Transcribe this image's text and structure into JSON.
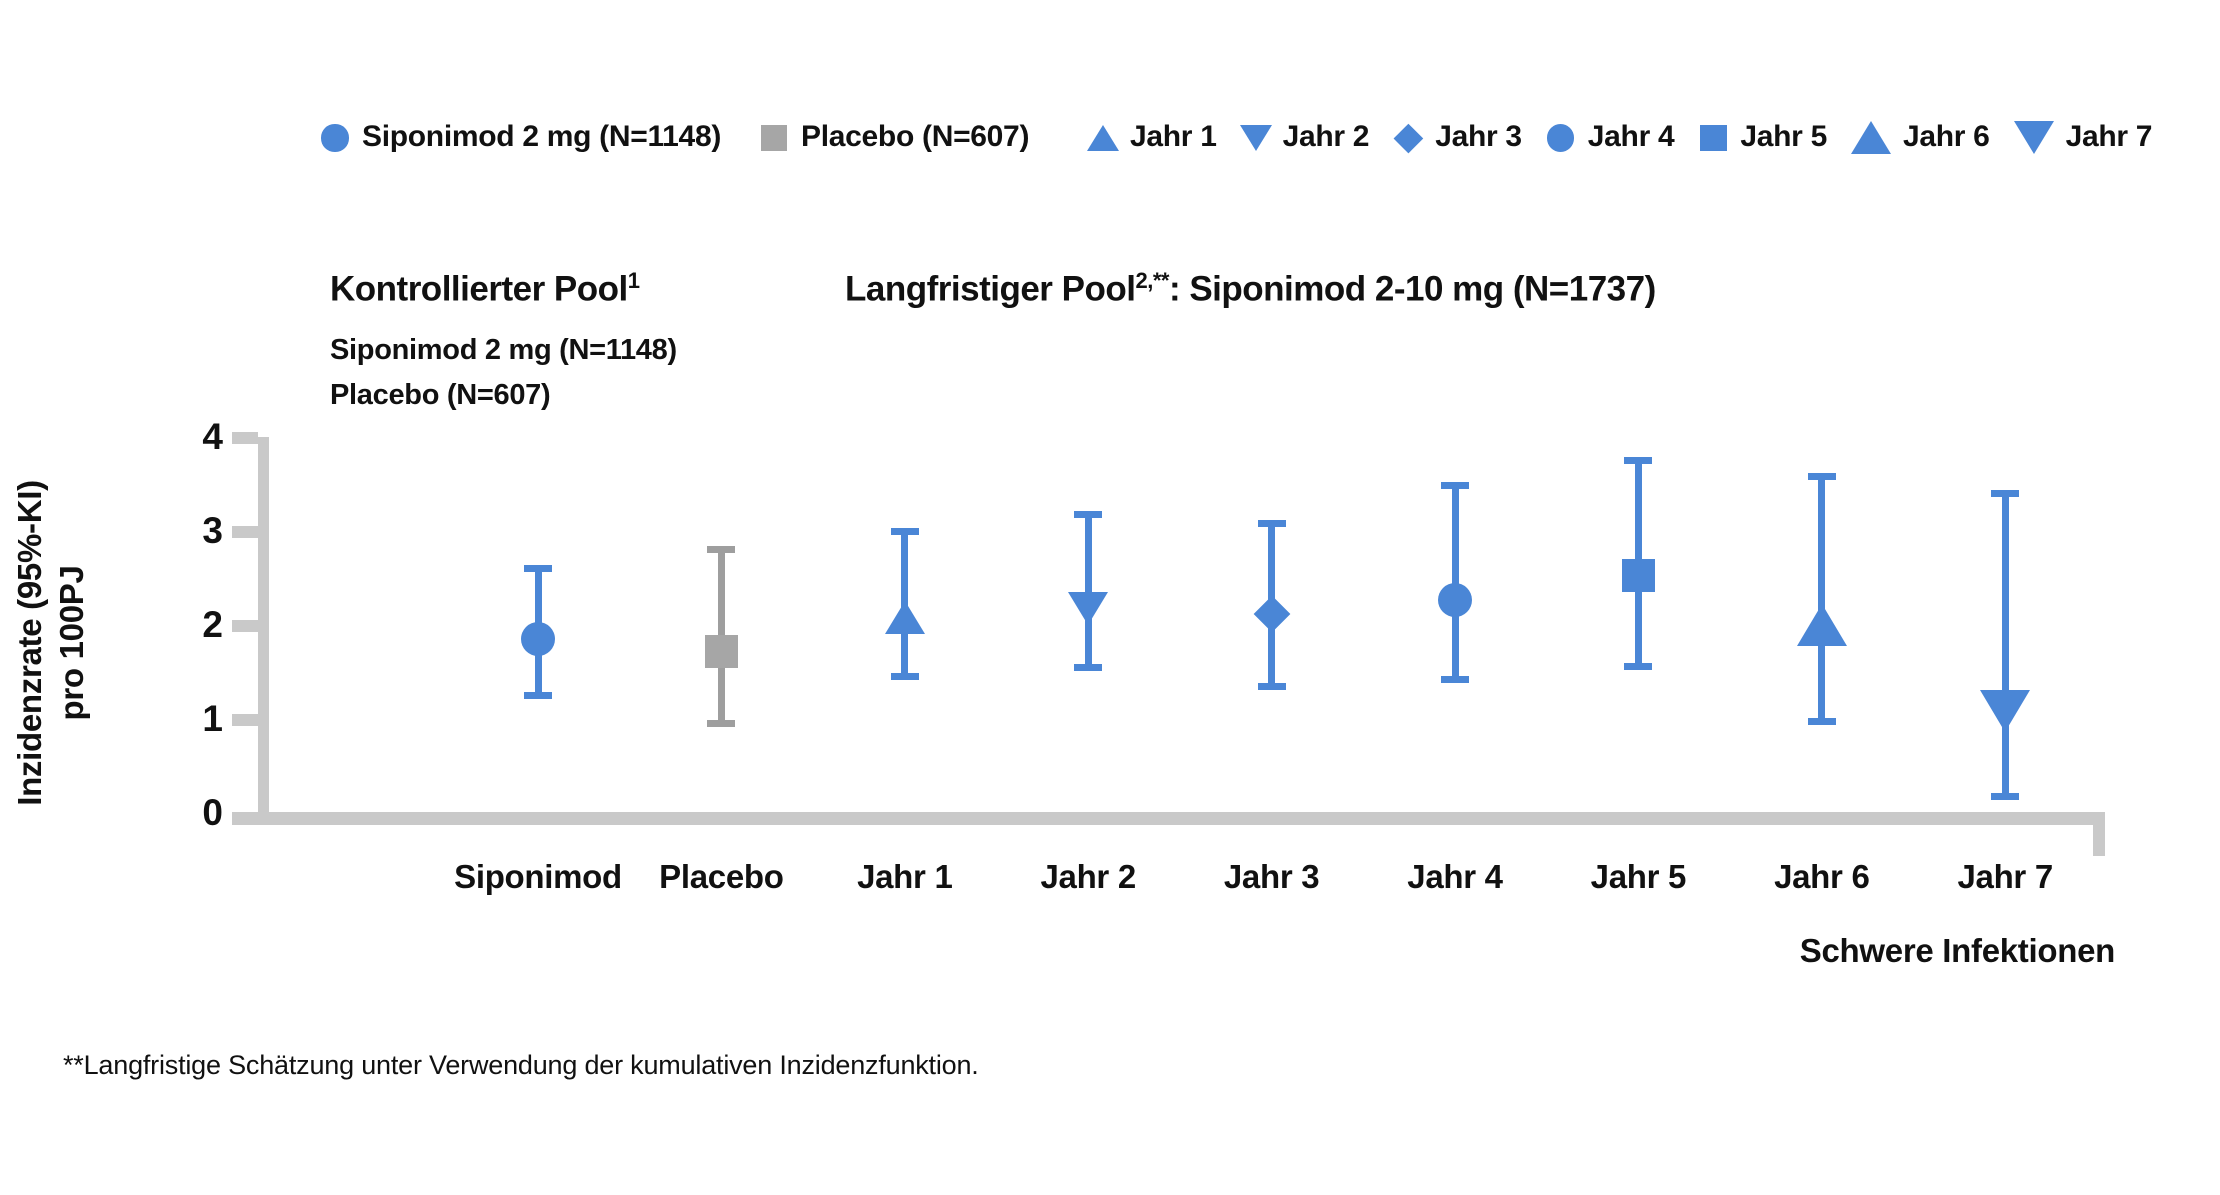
{
  "legend": {
    "controlled": [
      {
        "label": "Siponimod 2 mg (N=1148)",
        "marker": "circle",
        "color_key": "blue"
      },
      {
        "label": "Placebo (N=607)",
        "marker": "square",
        "color_key": "gray_marker"
      }
    ],
    "longterm": [
      {
        "label": "Jahr 1",
        "marker": "triangle-up",
        "color_key": "blue"
      },
      {
        "label": "Jahr 2",
        "marker": "triangle-down",
        "color_key": "blue"
      },
      {
        "label": "Jahr 3",
        "marker": "diamond",
        "color_key": "blue"
      },
      {
        "label": "Jahr 4",
        "marker": "circle",
        "color_key": "blue"
      },
      {
        "label": "Jahr 5",
        "marker": "square",
        "color_key": "blue"
      },
      {
        "label": "Jahr 6",
        "marker": "triangle-up-large",
        "color_key": "blue"
      },
      {
        "label": "Jahr 7",
        "marker": "triangle-down-large",
        "color_key": "blue"
      }
    ]
  },
  "header": {
    "left_title": {
      "text": "Kontrollierter Pool",
      "sup": "1"
    },
    "left_subtitle_lines": [
      "Siponimod 2 mg (N=1148)",
      "Placebo (N=607)"
    ],
    "right_title": {
      "text": "Langfristiger Pool",
      "sup": "2,**",
      "rest": ": Siponimod 2-10 mg (N=1737)"
    }
  },
  "chart_data": {
    "type": "scatter",
    "subtype": "point-estimates-with-95ci-errorbars",
    "ylabel_lines": [
      "Inzidenzrate (95%-KI)",
      "pro 100PJ"
    ],
    "yticks": [
      0,
      1,
      2,
      3,
      4
    ],
    "ylim": [
      0,
      4
    ],
    "grid": false,
    "x_caption": "Schwere Infektionen",
    "points": [
      {
        "label": "Siponimod",
        "pool": "Kontrollierter Pool",
        "marker": "circle",
        "color_key": "blue",
        "value": 1.85,
        "ci_low": 1.25,
        "ci_high": 2.6
      },
      {
        "label": "Placebo",
        "pool": "Kontrollierter Pool",
        "marker": "square",
        "color_key": "gray",
        "value": 1.72,
        "ci_low": 0.95,
        "ci_high": 2.8
      },
      {
        "label": "Jahr 1",
        "pool": "Langfristiger Pool",
        "marker": "triangle-up",
        "color_key": "blue",
        "value": 2.08,
        "ci_low": 1.45,
        "ci_high": 3.0
      },
      {
        "label": "Jahr 2",
        "pool": "Langfristiger Pool",
        "marker": "triangle-down",
        "color_key": "blue",
        "value": 2.18,
        "ci_low": 1.55,
        "ci_high": 3.18
      },
      {
        "label": "Jahr 3",
        "pool": "Langfristiger Pool",
        "marker": "diamond",
        "color_key": "blue",
        "value": 2.12,
        "ci_low": 1.35,
        "ci_high": 3.08
      },
      {
        "label": "Jahr 4",
        "pool": "Langfristiger Pool",
        "marker": "circle",
        "color_key": "blue",
        "value": 2.27,
        "ci_low": 1.42,
        "ci_high": 3.48
      },
      {
        "label": "Jahr 5",
        "pool": "Langfristiger Pool",
        "marker": "square",
        "color_key": "blue",
        "value": 2.53,
        "ci_low": 1.56,
        "ci_high": 3.75
      },
      {
        "label": "Jahr 6",
        "pool": "Langfristiger Pool",
        "marker": "triangle-up-large",
        "color_key": "blue",
        "value": 2.0,
        "ci_low": 0.97,
        "ci_high": 3.58
      },
      {
        "label": "Jahr 7",
        "pool": "Langfristiger Pool",
        "marker": "triangle-down-large",
        "color_key": "blue",
        "value": 1.08,
        "ci_low": 0.18,
        "ci_high": 3.4
      }
    ]
  },
  "footnote": "**Langfristige Schätzung unter Verwendung der kumulativen Inzidenzfunktion.",
  "colors": {
    "blue": "#4a86d6",
    "gray_marker": "#a6a6a6",
    "gray_line": "#9e9e9e",
    "axis": "#c9c9c9",
    "text": "#111111"
  }
}
